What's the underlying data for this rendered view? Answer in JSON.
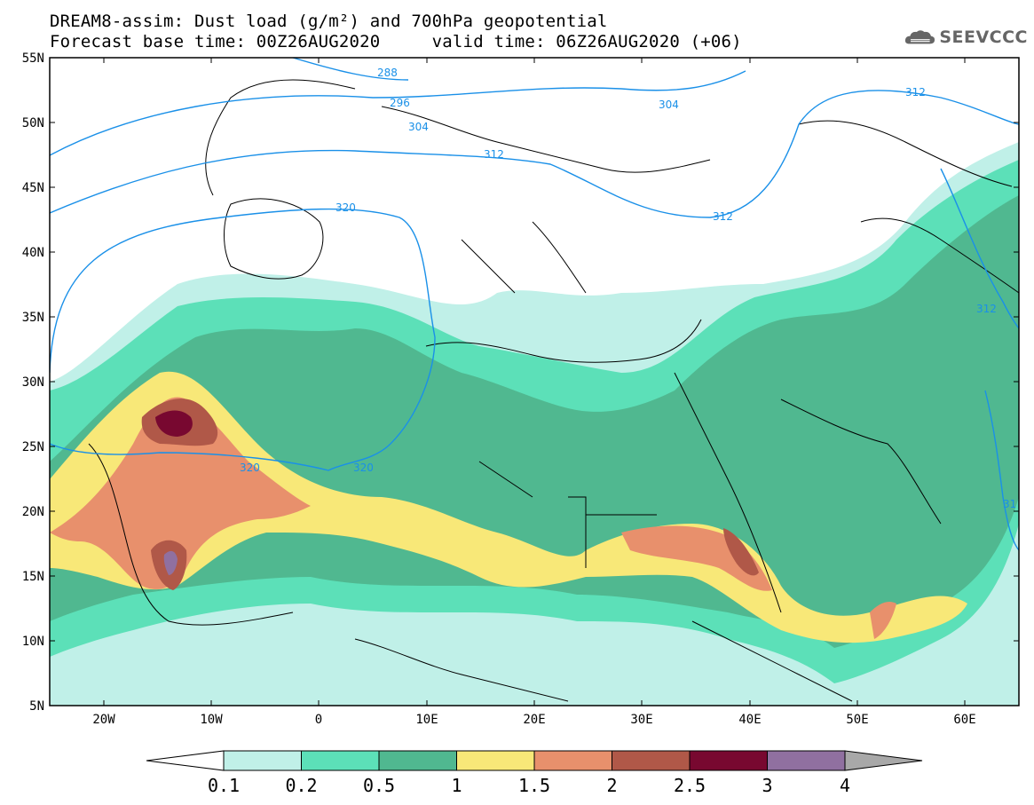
{
  "title": {
    "line1": "DREAM8-assim: Dust load (g/m²) and 700hPa geopotential",
    "line2": "Forecast base time: 00Z26AUG2020     valid time: 06Z26AUG2020 (+06)"
  },
  "logo": {
    "text": "SEEVCCC",
    "icon": "cloud-logo-icon"
  },
  "map": {
    "lon_range": [
      -25,
      65
    ],
    "lat_range": [
      5,
      55
    ],
    "lat_ticks": [
      "55N",
      "50N",
      "45N",
      "40N",
      "35N",
      "30N",
      "25N",
      "20N",
      "15N",
      "10N",
      "5N"
    ],
    "lon_ticks": [
      "20W",
      "10W",
      "0",
      "10E",
      "20E",
      "30E",
      "40E",
      "50E",
      "60E"
    ],
    "contour_color": "#1a90e8",
    "contour_labels": [
      "288",
      "296",
      "304",
      "304",
      "312",
      "312",
      "312",
      "320",
      "320",
      "320",
      "312",
      "31"
    ]
  },
  "colorbar": {
    "labels": [
      "0.1",
      "0.2",
      "0.5",
      "1",
      "1.5",
      "2",
      "2.5",
      "3",
      "4"
    ],
    "colors": [
      "#c0f0e8",
      "#5ce0b8",
      "#50b890",
      "#f8e878",
      "#e8906c",
      "#b05848",
      "#780830",
      "#9070a0"
    ],
    "under_color": "#ffffff",
    "over_color": "#a8a8a8"
  }
}
